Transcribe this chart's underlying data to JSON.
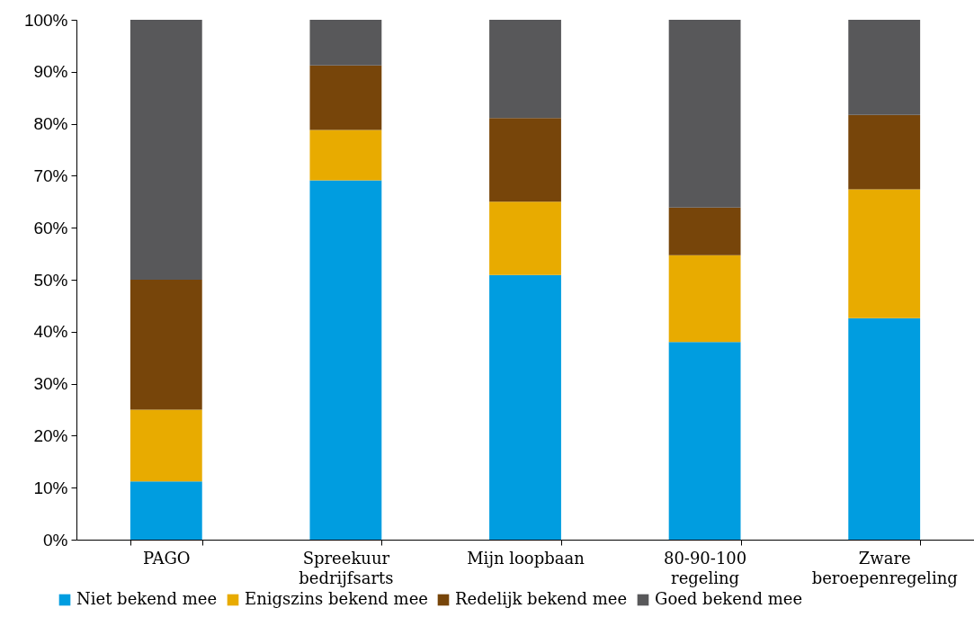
{
  "chart_data": {
    "type": "bar",
    "stacked": true,
    "categories": [
      "PAGO",
      "Spreekuur bedrijfsarts",
      "Mijn loopbaan",
      "80-90-100 regeling",
      "Zware beroepenregeling"
    ],
    "series": [
      {
        "name": "Niet bekend mee",
        "color": "#009de0",
        "values": [
          11.2,
          69.1,
          50.9,
          38.0,
          42.6
        ]
      },
      {
        "name": "Enigszins bekend mee",
        "color": "#e8ab00",
        "values": [
          13.8,
          9.7,
          14.1,
          16.7,
          24.8
        ]
      },
      {
        "name": "Redelijk bekend mee",
        "color": "#77450a",
        "values": [
          25.0,
          12.4,
          16.1,
          9.2,
          14.3
        ]
      },
      {
        "name": "Goed bekend mee",
        "color": "#58585a",
        "values": [
          50.0,
          8.8,
          18.9,
          36.1,
          18.3
        ]
      }
    ],
    "ylim": [
      0,
      100
    ],
    "yticks": [
      {
        "value": 0,
        "label": "0%"
      },
      {
        "value": 10,
        "label": "10%"
      },
      {
        "value": 20,
        "label": "20%"
      },
      {
        "value": 30,
        "label": "30%"
      },
      {
        "value": 40,
        "label": "40%"
      },
      {
        "value": 50,
        "label": "50%"
      },
      {
        "value": 60,
        "label": "60%"
      },
      {
        "value": 70,
        "label": "70%"
      },
      {
        "value": 80,
        "label": "80%"
      },
      {
        "value": 90,
        "label": "90%"
      },
      {
        "value": 100,
        "label": "100%"
      }
    ],
    "grid": false,
    "legend": "bottom"
  }
}
